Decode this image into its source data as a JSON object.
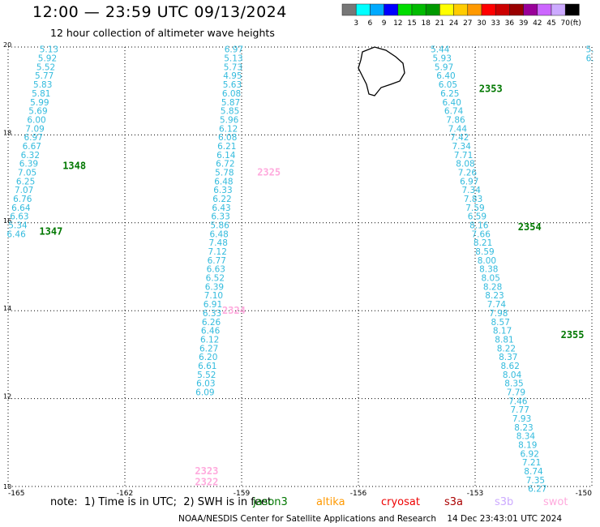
{
  "title": "12:00 — 23:59 UTC 09/13/2024",
  "subtitle": "12 hour collection of altimeter wave heights",
  "colorbar": {
    "units": "(ft)",
    "labels": [
      "3",
      "6",
      "9",
      "12",
      "15",
      "18",
      "21",
      "24",
      "27",
      "30",
      "33",
      "36",
      "39",
      "42",
      "45",
      "70"
    ],
    "colors": [
      "#777777",
      "#00ffff",
      "#00aaff",
      "#0000ff",
      "#00dd00",
      "#00bb00",
      "#009900",
      "#ffff00",
      "#ffcc00",
      "#ff9900",
      "#ff0000",
      "#cc0000",
      "#990000",
      "#990099",
      "#cc66ff",
      "#ccaaff",
      "#000000"
    ]
  },
  "note": "note:  1) Time is in UTC;  2) SWH is in feet",
  "satellites": [
    {
      "name": "jason3",
      "color": "#007700"
    },
    {
      "name": "altika",
      "color": "#ff9900"
    },
    {
      "name": "cryosat",
      "color": "#ee0000"
    },
    {
      "name": "s3a",
      "color": "#aa0000"
    },
    {
      "name": "s3b",
      "color": "#ccaaff"
    },
    {
      "name": "swot",
      "color": "#ffaadd"
    }
  ],
  "credit": "NOAA/NESDIS Center for Satellite Applications and Research    14 Dec 23:43:01 UTC 2024",
  "chart_data": {
    "type": "scatter",
    "xlim": [
      -165,
      -150
    ],
    "ylim": [
      10,
      20
    ],
    "xticks": [
      "-165",
      "-162",
      "-159",
      "-156",
      "-153",
      "-150"
    ],
    "yticks": [
      "10",
      "12",
      "14",
      "16",
      "18",
      "20"
    ],
    "grid": true,
    "point_color": "#33bbdd",
    "tracks": [
      {
        "satellite": "jason3",
        "labels": [
          {
            "text": "1348",
            "lon": -163.6,
            "lat": 17.3
          },
          {
            "text": "1347",
            "lon": -164.2,
            "lat": 15.8
          }
        ],
        "points": [
          {
            "lon": -163.95,
            "lat": 19.95,
            "v": "5.13"
          },
          {
            "lon": -163.99,
            "lat": 19.75,
            "v": "5.92"
          },
          {
            "lon": -164.03,
            "lat": 19.55,
            "v": "5.52"
          },
          {
            "lon": -164.07,
            "lat": 19.35,
            "v": "5.77"
          },
          {
            "lon": -164.11,
            "lat": 19.15,
            "v": "5.83"
          },
          {
            "lon": -164.15,
            "lat": 18.95,
            "v": "5.81"
          },
          {
            "lon": -164.19,
            "lat": 18.75,
            "v": "5.99"
          },
          {
            "lon": -164.23,
            "lat": 18.55,
            "v": "5.69"
          },
          {
            "lon": -164.27,
            "lat": 18.35,
            "v": "6.00"
          },
          {
            "lon": -164.31,
            "lat": 18.15,
            "v": "7.09"
          },
          {
            "lon": -164.35,
            "lat": 17.95,
            "v": "6.97"
          },
          {
            "lon": -164.39,
            "lat": 17.75,
            "v": "6.67"
          },
          {
            "lon": -164.43,
            "lat": 17.55,
            "v": "6.32"
          },
          {
            "lon": -164.47,
            "lat": 17.35,
            "v": "6.39"
          },
          {
            "lon": -164.51,
            "lat": 17.15,
            "v": "7.05"
          },
          {
            "lon": -164.55,
            "lat": 16.95,
            "v": "6.25"
          },
          {
            "lon": -164.59,
            "lat": 16.75,
            "v": "7.07"
          },
          {
            "lon": -164.63,
            "lat": 16.55,
            "v": "6.76"
          },
          {
            "lon": -164.67,
            "lat": 16.35,
            "v": "6.64"
          },
          {
            "lon": -164.71,
            "lat": 16.15,
            "v": "6.63"
          },
          {
            "lon": -164.75,
            "lat": 15.95,
            "v": "5.34"
          },
          {
            "lon": -164.79,
            "lat": 15.75,
            "v": "6.46"
          }
        ]
      },
      {
        "satellite": "swot",
        "labels": [
          {
            "text": "2325",
            "lon": -158.6,
            "lat": 17.15
          },
          {
            "text": "2324",
            "lon": -159.5,
            "lat": 14.0
          },
          {
            "text": "2323",
            "lon": -160.2,
            "lat": 10.35
          },
          {
            "text": "2322",
            "lon": -160.2,
            "lat": 10.1
          }
        ],
        "points": [
          {
            "lon": -159.2,
            "lat": 19.95,
            "v": "6.97"
          },
          {
            "lon": -159.21,
            "lat": 19.75,
            "v": "5.13"
          },
          {
            "lon": -159.22,
            "lat": 19.55,
            "v": "5.73"
          },
          {
            "lon": -159.23,
            "lat": 19.35,
            "v": "4.95"
          },
          {
            "lon": -159.24,
            "lat": 19.15,
            "v": "5.63"
          },
          {
            "lon": -159.26,
            "lat": 18.95,
            "v": "6.08"
          },
          {
            "lon": -159.28,
            "lat": 18.75,
            "v": "5.87"
          },
          {
            "lon": -159.3,
            "lat": 18.55,
            "v": "5.85"
          },
          {
            "lon": -159.32,
            "lat": 18.35,
            "v": "5.96"
          },
          {
            "lon": -159.34,
            "lat": 18.15,
            "v": "6.12"
          },
          {
            "lon": -159.36,
            "lat": 17.95,
            "v": "6.08"
          },
          {
            "lon": -159.38,
            "lat": 17.75,
            "v": "6.21"
          },
          {
            "lon": -159.4,
            "lat": 17.55,
            "v": "6.14"
          },
          {
            "lon": -159.42,
            "lat": 17.35,
            "v": "6.72"
          },
          {
            "lon": -159.44,
            "lat": 17.15,
            "v": "5.78"
          },
          {
            "lon": -159.46,
            "lat": 16.95,
            "v": "6.48"
          },
          {
            "lon": -159.48,
            "lat": 16.75,
            "v": "6.33"
          },
          {
            "lon": -159.5,
            "lat": 16.55,
            "v": "6.22"
          },
          {
            "lon": -159.52,
            "lat": 16.35,
            "v": "6.43"
          },
          {
            "lon": -159.54,
            "lat": 16.15,
            "v": "6.33"
          },
          {
            "lon": -159.56,
            "lat": 15.95,
            "v": "5.86"
          },
          {
            "lon": -159.58,
            "lat": 15.75,
            "v": "6.48"
          },
          {
            "lon": -159.6,
            "lat": 15.55,
            "v": "7.48"
          },
          {
            "lon": -159.62,
            "lat": 15.35,
            "v": "7.12"
          },
          {
            "lon": -159.64,
            "lat": 15.15,
            "v": "6.77"
          },
          {
            "lon": -159.66,
            "lat": 14.95,
            "v": "6.63"
          },
          {
            "lon": -159.68,
            "lat": 14.75,
            "v": "6.52"
          },
          {
            "lon": -159.7,
            "lat": 14.55,
            "v": "6.39"
          },
          {
            "lon": -159.72,
            "lat": 14.35,
            "v": "7.10"
          },
          {
            "lon": -159.74,
            "lat": 14.15,
            "v": "6.91"
          },
          {
            "lon": -159.76,
            "lat": 13.95,
            "v": "6.33"
          },
          {
            "lon": -159.78,
            "lat": 13.75,
            "v": "6.26"
          },
          {
            "lon": -159.8,
            "lat": 13.55,
            "v": "6.46"
          },
          {
            "lon": -159.82,
            "lat": 13.35,
            "v": "6.12"
          },
          {
            "lon": -159.84,
            "lat": 13.15,
            "v": "6.27"
          },
          {
            "lon": -159.86,
            "lat": 12.95,
            "v": "6.20"
          },
          {
            "lon": -159.88,
            "lat": 12.75,
            "v": "6.61"
          },
          {
            "lon": -159.9,
            "lat": 12.55,
            "v": "5.52"
          },
          {
            "lon": -159.92,
            "lat": 12.35,
            "v": "6.03"
          },
          {
            "lon": -159.94,
            "lat": 12.15,
            "v": "6.09"
          }
        ]
      },
      {
        "satellite": "jason3",
        "labels": [
          {
            "text": "2353",
            "lon": -152.9,
            "lat": 19.05
          },
          {
            "text": "2354",
            "lon": -151.9,
            "lat": 15.9
          },
          {
            "text": "2355",
            "lon": -150.8,
            "lat": 13.45
          }
        ],
        "points": [
          {
            "lon": -153.9,
            "lat": 19.95,
            "v": "5.44"
          },
          {
            "lon": -153.85,
            "lat": 19.75,
            "v": "5.93"
          },
          {
            "lon": -153.8,
            "lat": 19.55,
            "v": "5.97"
          },
          {
            "lon": -153.75,
            "lat": 19.35,
            "v": "6.40"
          },
          {
            "lon": -153.7,
            "lat": 19.15,
            "v": "6.05"
          },
          {
            "lon": -153.65,
            "lat": 18.95,
            "v": "6.25"
          },
          {
            "lon": -153.6,
            "lat": 18.75,
            "v": "6.40"
          },
          {
            "lon": -153.55,
            "lat": 18.55,
            "v": "6.74"
          },
          {
            "lon": -153.5,
            "lat": 18.35,
            "v": "7.86"
          },
          {
            "lon": -153.45,
            "lat": 18.15,
            "v": "7.44"
          },
          {
            "lon": -153.4,
            "lat": 17.95,
            "v": "7.42"
          },
          {
            "lon": -153.35,
            "lat": 17.75,
            "v": "7.34"
          },
          {
            "lon": -153.3,
            "lat": 17.55,
            "v": "7.71"
          },
          {
            "lon": -153.25,
            "lat": 17.35,
            "v": "8.08"
          },
          {
            "lon": -153.2,
            "lat": 17.15,
            "v": "7.26"
          },
          {
            "lon": -153.15,
            "lat": 16.95,
            "v": "6.97"
          },
          {
            "lon": -153.1,
            "lat": 16.75,
            "v": "7.34"
          },
          {
            "lon": -153.05,
            "lat": 16.55,
            "v": "7.83"
          },
          {
            "lon": -153.0,
            "lat": 16.35,
            "v": "7.59"
          },
          {
            "lon": -152.95,
            "lat": 16.15,
            "v": "6.59"
          },
          {
            "lon": -152.9,
            "lat": 15.95,
            "v": "8.16"
          },
          {
            "lon": -152.85,
            "lat": 15.75,
            "v": "7.66"
          },
          {
            "lon": -152.8,
            "lat": 15.55,
            "v": "8.21"
          },
          {
            "lon": -152.75,
            "lat": 15.35,
            "v": "8.59"
          },
          {
            "lon": -152.7,
            "lat": 15.15,
            "v": "8.00"
          },
          {
            "lon": -152.65,
            "lat": 14.95,
            "v": "8.38"
          },
          {
            "lon": -152.6,
            "lat": 14.75,
            "v": "8.05"
          },
          {
            "lon": -152.55,
            "lat": 14.55,
            "v": "8.28"
          },
          {
            "lon": -152.5,
            "lat": 14.35,
            "v": "8.23"
          },
          {
            "lon": -152.45,
            "lat": 14.15,
            "v": "7.74"
          },
          {
            "lon": -152.4,
            "lat": 13.95,
            "v": "7.98"
          },
          {
            "lon": -152.35,
            "lat": 13.75,
            "v": "8.57"
          },
          {
            "lon": -152.3,
            "lat": 13.55,
            "v": "8.17"
          },
          {
            "lon": -152.25,
            "lat": 13.35,
            "v": "8.81"
          },
          {
            "lon": -152.2,
            "lat": 13.15,
            "v": "8.22"
          },
          {
            "lon": -152.15,
            "lat": 12.95,
            "v": "8.37"
          },
          {
            "lon": -152.1,
            "lat": 12.75,
            "v": "8.62"
          },
          {
            "lon": -152.05,
            "lat": 12.55,
            "v": "8.04"
          },
          {
            "lon": -152.0,
            "lat": 12.35,
            "v": "8.35"
          },
          {
            "lon": -151.95,
            "lat": 12.15,
            "v": "7.79"
          },
          {
            "lon": -151.9,
            "lat": 11.95,
            "v": "7.46"
          },
          {
            "lon": -151.85,
            "lat": 11.75,
            "v": "7.77"
          },
          {
            "lon": -151.8,
            "lat": 11.55,
            "v": "7.93"
          },
          {
            "lon": -151.75,
            "lat": 11.35,
            "v": "8.23"
          },
          {
            "lon": -151.7,
            "lat": 11.15,
            "v": "8.34"
          },
          {
            "lon": -151.65,
            "lat": 10.95,
            "v": "8.19"
          },
          {
            "lon": -151.6,
            "lat": 10.75,
            "v": "6.92"
          },
          {
            "lon": -151.55,
            "lat": 10.55,
            "v": "7.21"
          },
          {
            "lon": -151.5,
            "lat": 10.35,
            "v": "8.74"
          },
          {
            "lon": -151.45,
            "lat": 10.15,
            "v": "7.35"
          },
          {
            "lon": -151.4,
            "lat": 9.95,
            "v": "6.27"
          }
        ]
      },
      {
        "satellite": "altika",
        "labels": [],
        "points": [
          {
            "lon": -150.05,
            "lat": 19.95,
            "v": "5."
          },
          {
            "lon": -150.05,
            "lat": 19.75,
            "v": "6."
          }
        ]
      }
    ]
  }
}
